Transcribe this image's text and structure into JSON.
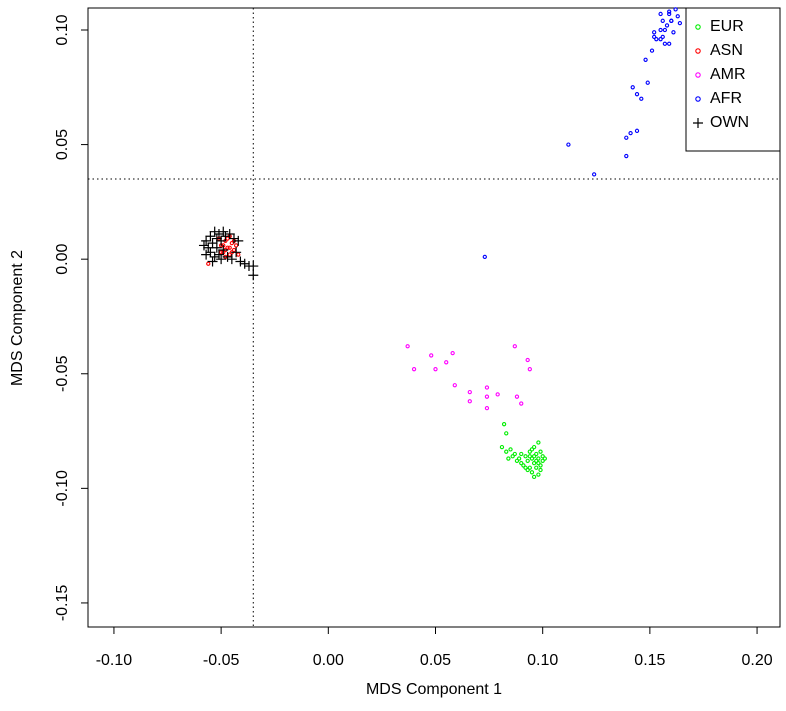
{
  "chart_data": {
    "type": "scatter",
    "x_label": "MDS Component 1",
    "y_label": "MDS Component 2",
    "xlim": [
      -0.1121,
      0.2107
    ],
    "ylim": [
      -0.1605,
      0.1096
    ],
    "xticks": [
      {
        "value": -0.1,
        "label": "-0.10"
      },
      -0.05,
      {
        "value": 0,
        "label": "0.00"
      },
      0.05,
      {
        "value": 0.1,
        "label": "0.10"
      },
      0.15,
      {
        "value": 0.2,
        "label": "0.20"
      }
    ],
    "yticks": [
      -0.15,
      {
        "value": -0.1,
        "label": "-0.10"
      },
      -0.05,
      {
        "value": 0,
        "label": "0.00"
      },
      0.05,
      {
        "value": 0.1,
        "label": "0.10"
      }
    ],
    "reference_lines": {
      "x": -0.035,
      "y": 0.035
    },
    "legend": "top-right",
    "series": [
      {
        "name": "EUR",
        "color": "#00ee00",
        "marker": "circle",
        "x": [
          0.082,
          0.083,
          0.081,
          0.083,
          0.085,
          0.086,
          0.087,
          0.088,
          0.089,
          0.09,
          0.091,
          0.092,
          0.093,
          0.094,
          0.094,
          0.095,
          0.095,
          0.096,
          0.096,
          0.097,
          0.097,
          0.098,
          0.098,
          0.099,
          0.099,
          0.1,
          0.1,
          0.096,
          0.098,
          0.093,
          0.095,
          0.097,
          0.094,
          0.096,
          0.098,
          0.084,
          0.09,
          0.092,
          0.099,
          0.101
        ],
        "values": [
          -0.072,
          -0.076,
          -0.082,
          -0.084,
          -0.083,
          -0.086,
          -0.085,
          -0.088,
          -0.087,
          -0.089,
          -0.09,
          -0.086,
          -0.088,
          -0.084,
          -0.091,
          -0.087,
          -0.093,
          -0.082,
          -0.089,
          -0.085,
          -0.091,
          -0.087,
          -0.08,
          -0.084,
          -0.09,
          -0.086,
          -0.088,
          -0.095,
          -0.094,
          -0.092,
          -0.083,
          -0.088,
          -0.086,
          -0.086,
          -0.089,
          -0.087,
          -0.085,
          -0.091,
          -0.092,
          -0.087
        ]
      },
      {
        "name": "ASN",
        "color": "#ff0000",
        "marker": "circle",
        "x": [
          -0.051,
          -0.05,
          -0.049,
          -0.048,
          -0.047,
          -0.046,
          -0.045,
          -0.044,
          -0.048,
          -0.046,
          -0.043,
          -0.05,
          -0.047,
          -0.045,
          -0.049,
          -0.046,
          -0.044,
          -0.048,
          -0.056,
          -0.042
        ],
        "values": [
          0.009,
          0.006,
          0.003,
          0.008,
          0.005,
          0.002,
          0.007,
          0.004,
          0.001,
          0.01,
          0.006,
          0.003,
          0.009,
          0.003,
          0.006,
          0.005,
          0.008,
          0.004,
          -0.002,
          0.002
        ]
      },
      {
        "name": "AMR",
        "color": "#ff00ff",
        "marker": "circle",
        "x": [
          0.037,
          0.04,
          0.048,
          0.05,
          0.055,
          0.058,
          0.059,
          0.066,
          0.066,
          0.074,
          0.074,
          0.074,
          0.079,
          0.087,
          0.088,
          0.09,
          0.093,
          0.094
        ],
        "values": [
          -0.038,
          -0.048,
          -0.042,
          -0.048,
          -0.045,
          -0.041,
          -0.055,
          -0.058,
          -0.062,
          -0.056,
          -0.06,
          -0.065,
          -0.059,
          -0.038,
          -0.06,
          -0.063,
          -0.044,
          -0.048
        ]
      },
      {
        "name": "AFR",
        "color": "#0000ff",
        "marker": "circle",
        "x": [
          0.073,
          0.112,
          0.124,
          0.139,
          0.139,
          0.141,
          0.144,
          0.142,
          0.144,
          0.146,
          0.149,
          0.148,
          0.151,
          0.152,
          0.152,
          0.155,
          0.157,
          0.159,
          0.156,
          0.159,
          0.155,
          0.16,
          0.162,
          0.153,
          0.155,
          0.157,
          0.158,
          0.16,
          0.161,
          0.163,
          0.164,
          0.159,
          0.156
        ],
        "values": [
          0.001,
          0.05,
          0.037,
          0.045,
          0.053,
          0.055,
          0.056,
          0.075,
          0.072,
          0.07,
          0.077,
          0.087,
          0.091,
          0.099,
          0.097,
          0.096,
          0.1,
          0.094,
          0.104,
          0.108,
          0.107,
          0.104,
          0.109,
          0.096,
          0.1,
          0.094,
          0.102,
          0.104,
          0.099,
          0.106,
          0.103,
          0.107,
          0.097
        ]
      },
      {
        "name": "OWN",
        "color": "#000000",
        "marker": "plus",
        "x": [
          -0.057,
          -0.056,
          -0.055,
          -0.055,
          -0.054,
          -0.053,
          -0.053,
          -0.052,
          -0.052,
          -0.051,
          -0.051,
          -0.05,
          -0.049,
          -0.049,
          -0.048,
          -0.047,
          -0.046,
          -0.045,
          -0.044,
          -0.043,
          -0.042,
          -0.054,
          -0.057,
          -0.05,
          -0.041,
          -0.039,
          -0.037,
          -0.035,
          -0.035,
          -0.058
        ],
        "values": [
          0.008,
          0.005,
          0.01,
          0.003,
          0.007,
          0.012,
          0.001,
          0.009,
          0.005,
          0.011,
          0.002,
          0.008,
          0.012,
          0.004,
          0.01,
          0.001,
          0.011,
          0.0,
          0.009,
          0.003,
          0.008,
          -0.001,
          0.002,
          0.0,
          -0.001,
          -0.002,
          -0.003,
          -0.003,
          -0.007,
          0.006
        ]
      }
    ]
  }
}
